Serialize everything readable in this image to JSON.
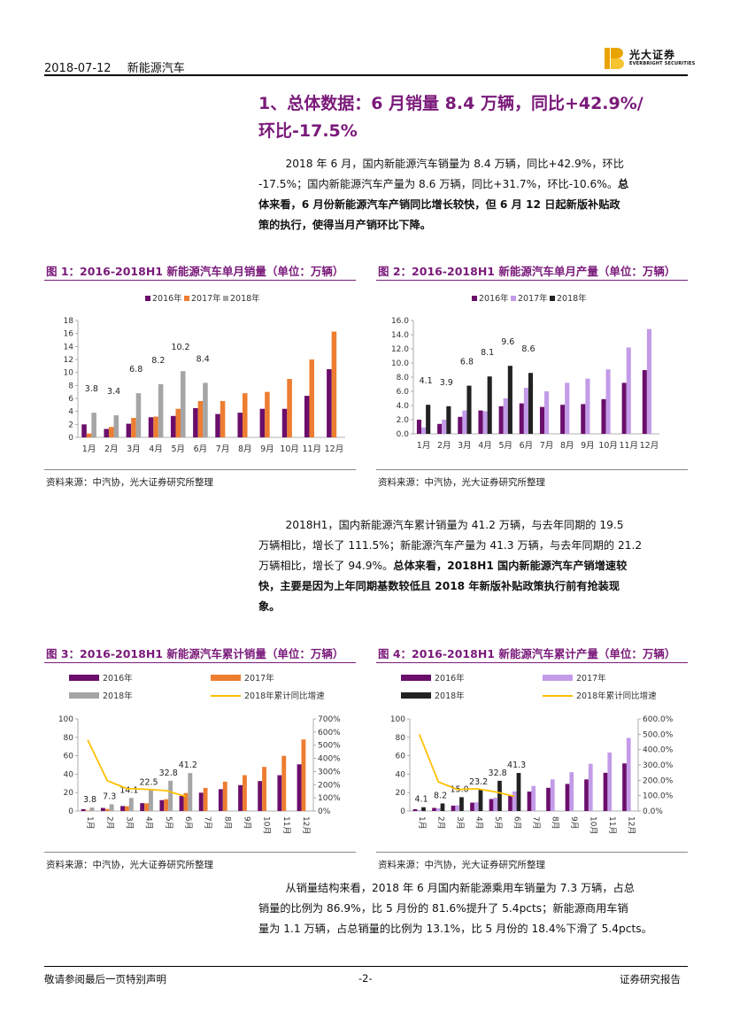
{
  "header": {
    "date": "2018-07-12",
    "topic": "新能源汽车",
    "logo_cn": "光大证券",
    "logo_en": "EVERBRIGHT SECURITIES"
  },
  "section": {
    "title_line1": "1、总体数据：6 月销量 8.4 万辆，同比+42.9%/",
    "title_line2": "环比-17.5%"
  },
  "para1": {
    "line1": "2018 年 6 月，国内新能源汽车销量为 8.4 万辆，同比+42.9%，环比",
    "line2": "-17.5%；国内新能源汽车产量为 8.6 万辆，同比+31.7%，环比-10.6%。",
    "line2_bold": "总",
    "line3_bold": "体来看，6 月份新能源汽车产销同比增长较快，但 6 月 12 日起新版补贴政",
    "line4_bold": "策的执行，使得当月产销环比下降。"
  },
  "para2": {
    "line1": "2018H1，国内新能源汽车累计销量为 41.2 万辆，与去年同期的 19.5",
    "line2": "万辆相比，增长了 111.5%；新能源汽车产量为 41.3 万辆，与去年同期的 21.2",
    "line3": "万辆相比，增长了 94.9%。",
    "line3_bold": "总体来看，2018H1 国内新能源汽车产销增速较",
    "line4_bold": "快，主要是因为上年同期基数较低且 2018 年新版补贴政策执行前有抢装现",
    "line5_bold": "象。"
  },
  "para3": {
    "line1": "从销量结构来看，2018 年 6 月国内新能源乘用车销量为 7.3 万辆，占总",
    "line2": "销量的比例为 86.9%，比 5 月份的 81.6%提升了 5.4pcts；新能源商用车销",
    "line3": "量为 1.1 万辆，占总销量的比例为 13.1%，比 5 月份的 18.4%下滑了 5.4pcts。"
  },
  "source_text": "资料来源：中汽协，光大证券研究所整理",
  "footer": {
    "left": "敬请参阅最后一页特别声明",
    "center": "-2-",
    "right": "证券研究报告"
  },
  "colors": {
    "c2016": "#6b0e6b",
    "c2017_sales": "#ed7d31",
    "c2017_prod": "#c39be8",
    "c2018_sales": "#a5a5a5",
    "c2018_prod": "#222222",
    "growth": "#ffc000"
  },
  "chart_data": [
    {
      "type": "bar",
      "title": "图 1：2016-2018H1 新能源汽车单月销量（单位：万辆）",
      "categories": [
        "1月",
        "2月",
        "3月",
        "4月",
        "5月",
        "6月",
        "7月",
        "8月",
        "9月",
        "10月",
        "11月",
        "12月"
      ],
      "ylim": [
        0,
        18
      ],
      "yticks": [
        "0",
        "2",
        "4",
        "6",
        "8",
        "10",
        "12",
        "14",
        "16",
        "18"
      ],
      "legend": [
        "2016年",
        "2017年",
        "2018年"
      ],
      "series": [
        {
          "name": "2016年",
          "values": [
            2.0,
            1.3,
            2.1,
            3.1,
            3.3,
            4.5,
            3.6,
            3.8,
            4.4,
            4.4,
            6.4,
            10.5
          ]
        },
        {
          "name": "2017年",
          "values": [
            0.6,
            1.6,
            3.0,
            3.2,
            4.4,
            5.6,
            5.6,
            6.8,
            7.0,
            9.0,
            12.0,
            16.3
          ]
        },
        {
          "name": "2018年",
          "values": [
            3.8,
            3.4,
            6.8,
            8.2,
            10.2,
            8.4
          ]
        }
      ],
      "labels": [
        "3.8",
        "3.4",
        "6.8",
        "8.2",
        "10.2",
        "8.4"
      ]
    },
    {
      "type": "bar",
      "title": "图 2：2016-2018H1 新能源汽车单月产量（单位：万辆）",
      "categories": [
        "1月",
        "2月",
        "3月",
        "4月",
        "5月",
        "6月",
        "7月",
        "8月",
        "9月",
        "10月",
        "11月",
        "12月"
      ],
      "ylim": [
        0,
        16
      ],
      "yticks": [
        "0.0",
        "2.0",
        "4.0",
        "6.0",
        "8.0",
        "10.0",
        "12.0",
        "14.0",
        "16.0"
      ],
      "legend": [
        "2016年",
        "2017年",
        "2018年"
      ],
      "series": [
        {
          "name": "2016年",
          "values": [
            2.0,
            1.4,
            2.4,
            3.3,
            3.9,
            4.3,
            3.8,
            4.1,
            4.2,
            4.9,
            7.2,
            9.0
          ]
        },
        {
          "name": "2017年",
          "values": [
            0.9,
            2.0,
            3.3,
            3.2,
            5.0,
            6.5,
            6.0,
            7.2,
            7.8,
            9.1,
            12.2,
            14.8
          ]
        },
        {
          "name": "2018年",
          "values": [
            4.1,
            3.9,
            6.8,
            8.1,
            9.6,
            8.6
          ]
        }
      ],
      "labels": [
        "4.1",
        "3.9",
        "6.8",
        "8.1",
        "9.6",
        "8.6"
      ]
    },
    {
      "type": "bar",
      "title": "图 3：2016-2018H1 新能源汽车累计销量（单位：万辆）",
      "categories": [
        "1月",
        "2月",
        "3月",
        "4月",
        "5月",
        "6月",
        "7月",
        "8月",
        "9月",
        "10月",
        "11月",
        "12月"
      ],
      "ylim": [
        0,
        100
      ],
      "yticks": [
        "0",
        "20",
        "40",
        "60",
        "80",
        "100"
      ],
      "y2lim": [
        0,
        700
      ],
      "y2ticks": [
        "0%",
        "100%",
        "200%",
        "300%",
        "400%",
        "500%",
        "600%",
        "700%"
      ],
      "legend": [
        "2016年",
        "2017年",
        "2018年",
        "2018年累计同比增速"
      ],
      "series": [
        {
          "name": "2016年",
          "values": [
            2.0,
            3.3,
            5.4,
            8.5,
            11.8,
            16.3,
            19.9,
            23.7,
            28.1,
            32.5,
            38.9,
            50.7
          ]
        },
        {
          "name": "2017年",
          "values": [
            0.6,
            2.2,
            5.2,
            8.4,
            12.8,
            19.5,
            25.1,
            31.9,
            38.9,
            47.9,
            59.9,
            77.7
          ]
        },
        {
          "name": "2018年",
          "values": [
            3.8,
            7.3,
            14.1,
            22.5,
            32.8,
            41.2
          ]
        },
        {
          "name": "2018年累计同比增速",
          "values": [
            540,
            230,
            170,
            165,
            155,
            110
          ]
        }
      ],
      "labels": [
        "3.8",
        "7.3",
        "14.1",
        "22.5",
        "32.8",
        "41.2"
      ]
    },
    {
      "type": "bar",
      "title": "图 4：2016-2018H1 新能源汽车累计产量（单位：万辆）",
      "categories": [
        "1月",
        "2月",
        "3月",
        "4月",
        "5月",
        "6月",
        "7月",
        "8月",
        "9月",
        "10月",
        "11月",
        "12月"
      ],
      "ylim": [
        0,
        100
      ],
      "yticks": [
        "0",
        "20",
        "40",
        "60",
        "80",
        "100"
      ],
      "y2lim": [
        0,
        600
      ],
      "y2ticks": [
        "0.0%",
        "100.0%",
        "200.0%",
        "300.0%",
        "400.0%",
        "500.0%",
        "600.0%"
      ],
      "legend": [
        "2016年",
        "2017年",
        "2018年",
        "2018年累计同比增速"
      ],
      "series": [
        {
          "name": "2016年",
          "values": [
            2.0,
            3.4,
            5.8,
            9.1,
            13.0,
            17.3,
            21.1,
            25.2,
            29.4,
            34.3,
            41.5,
            51.7
          ]
        },
        {
          "name": "2017年",
          "values": [
            0.9,
            2.9,
            6.2,
            9.4,
            14.4,
            21.2,
            27.2,
            34.4,
            42.2,
            51.3,
            63.5,
            79.4
          ]
        },
        {
          "name": "2018年",
          "values": [
            4.1,
            8.2,
            15.0,
            23.2,
            32.8,
            41.3
          ]
        },
        {
          "name": "2018年累计同比增速",
          "values": [
            500,
            190,
            140,
            145,
            125,
            95
          ]
        }
      ],
      "labels": [
        "4.1",
        "8.2",
        "15.0",
        "23.2",
        "32.8",
        "41.3"
      ]
    }
  ]
}
